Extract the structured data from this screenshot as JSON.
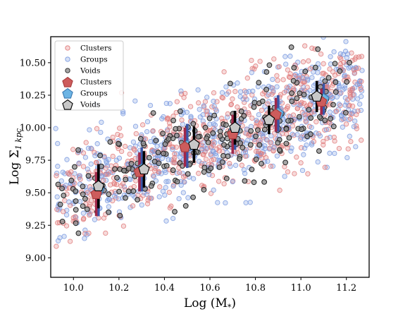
{
  "chart_data": {
    "type": "scatter",
    "title": "",
    "xlabel": "Log (M",
    "xlabel_sub": "*",
    "xlabel_close": ")",
    "ylabel": "Log Σ",
    "ylabel_sub": "1 kpc",
    "xlim": [
      9.9,
      11.3
    ],
    "ylim": [
      8.85,
      10.7
    ],
    "x_ticks": [
      10.0,
      10.2,
      10.4,
      10.6,
      10.8,
      11.0,
      11.2
    ],
    "x_tick_labels": [
      "10.0",
      "10.2",
      "10.4",
      "10.6",
      "10.8",
      "11.0",
      "11.2"
    ],
    "y_ticks": [
      9.0,
      9.25,
      9.5,
      9.75,
      10.0,
      10.25,
      10.5
    ],
    "y_tick_labels": [
      "9.00",
      "9.25",
      "9.50",
      "9.75",
      "10.00",
      "10.25",
      "10.50"
    ],
    "grid": false,
    "legend_position": "top-left",
    "colors": {
      "clusters": "#e07b7b",
      "groups": "#7b9be0",
      "voids": "#333333",
      "cluster_marker": "#cd5c5c",
      "group_marker": "#6cb4e4",
      "void_marker": "#c8c8c8",
      "cluster_bar": "#a0284a",
      "group_bar": "#3a56a8",
      "void_bar": "#000000"
    },
    "legend": [
      {
        "label": "Clusters",
        "marker": "small-circle",
        "series": "clusters"
      },
      {
        "label": "Groups",
        "marker": "small-circle",
        "series": "groups"
      },
      {
        "label": "Voids",
        "marker": "small-circle",
        "series": "voids"
      },
      {
        "label": "Clusters",
        "marker": "pentagon",
        "series": "clusters"
      },
      {
        "label": "Groups",
        "marker": "pentagon",
        "series": "groups"
      },
      {
        "label": "Voids",
        "marker": "pentagon",
        "series": "voids"
      }
    ],
    "scatter_relation": {
      "slope": 0.65,
      "intercept_at_10": 9.5,
      "scatter_clusters": 0.2,
      "scatter_groups": 0.2,
      "scatter_voids": 0.17
    },
    "series": [
      {
        "name": "Clusters",
        "x": [
          10.1,
          10.29,
          10.49,
          10.7,
          10.89,
          11.09
        ],
        "y": [
          9.49,
          9.66,
          9.85,
          9.95,
          10.1,
          10.2
        ],
        "yerr": [
          0.17,
          0.15,
          0.15,
          0.15,
          0.13,
          0.1
        ]
      },
      {
        "name": "Groups",
        "x": [
          10.11,
          10.3,
          10.5,
          10.71,
          10.9,
          11.1
        ],
        "y": [
          9.52,
          9.68,
          9.86,
          9.98,
          10.11,
          10.22
        ],
        "yerr": [
          0.2,
          0.17,
          0.17,
          0.15,
          0.14,
          0.12
        ]
      },
      {
        "name": "Voids",
        "x": [
          10.11,
          10.31,
          10.53,
          10.71,
          10.86,
          11.07
        ],
        "y": [
          9.55,
          9.68,
          9.87,
          10.0,
          10.06,
          10.24
        ],
        "yerr": [
          0.17,
          0.14,
          0.14,
          0.13,
          0.11,
          0.12
        ]
      }
    ]
  }
}
